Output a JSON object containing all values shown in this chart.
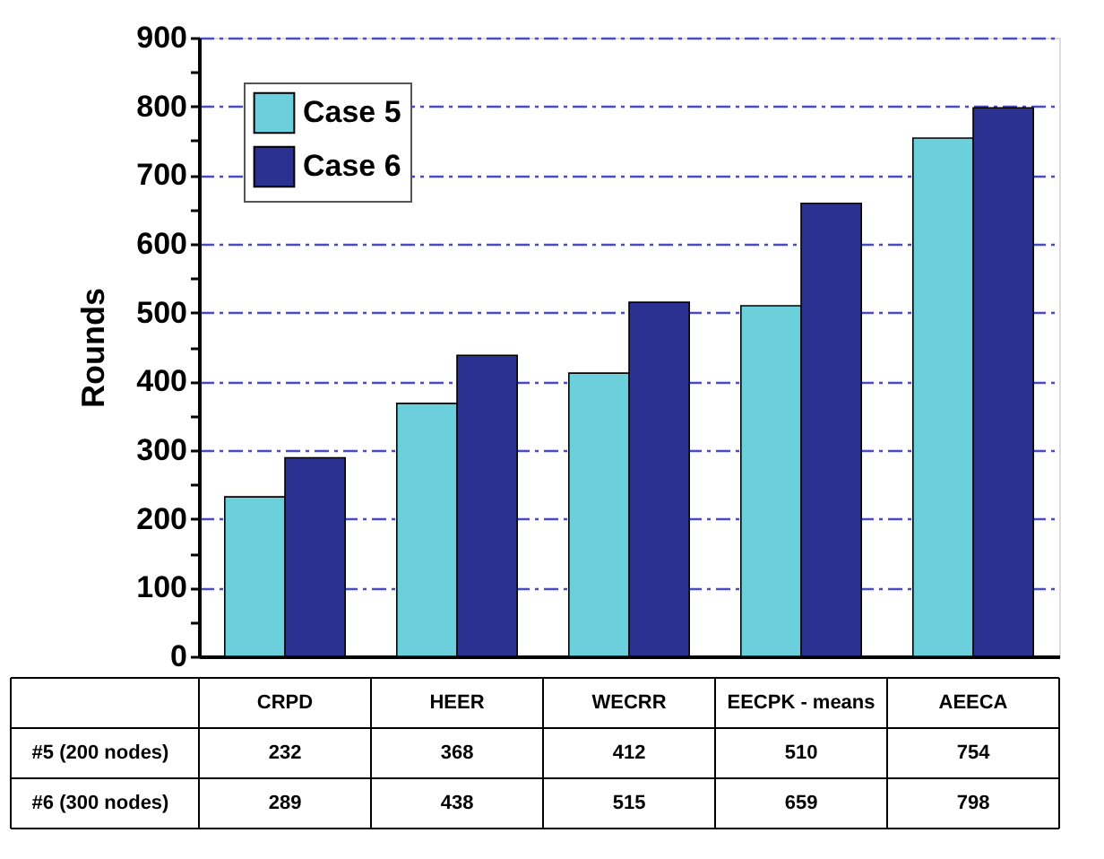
{
  "chart_data": {
    "type": "bar",
    "ylabel": "Rounds",
    "categories": [
      "CRPD",
      "HEER",
      "WECRR",
      "EECPK - means",
      "AEECA"
    ],
    "series": [
      {
        "name": "Case 5",
        "color": "#6ccfdc",
        "values": [
          232,
          368,
          412,
          510,
          754
        ]
      },
      {
        "name": "Case 6",
        "color": "#2b3190",
        "values": [
          289,
          438,
          515,
          659,
          798
        ]
      }
    ],
    "ylim": [
      0,
      900
    ],
    "yticks": [
      0,
      {
        "value": 50,
        "label": null
      },
      100,
      {
        "value": 150,
        "label": null
      },
      200,
      {
        "value": 250,
        "label": null
      },
      300,
      {
        "value": 350,
        "label": null
      },
      400,
      {
        "value": 450,
        "label": null
      },
      500,
      {
        "value": 550,
        "label": null
      },
      600,
      {
        "value": 650,
        "label": null
      },
      700,
      {
        "value": 750,
        "label": null
      },
      800,
      {
        "value": 850,
        "label": null
      },
      900
    ],
    "grid": "y",
    "legend": "top left",
    "data_labels": true,
    "annotations": [
      "#5 (200 nodes)",
      "#6 (300 nodes)"
    ]
  }
}
